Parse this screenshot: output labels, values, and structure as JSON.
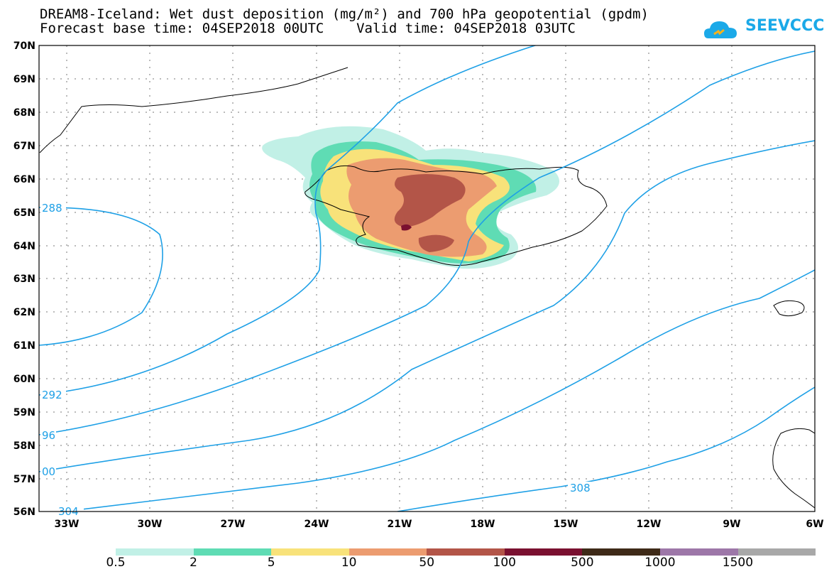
{
  "title": {
    "line1": "DREAM8-Iceland: Wet dust deposition (mg/m²) and 700 hPa geopotential (gpdm)",
    "line2": "Forecast base time: 04SEP2018 00UTC    Valid time: 04SEP2018 03UTC"
  },
  "logo": {
    "text": "SEEVCCC",
    "color": "#1ba9e8"
  },
  "map": {
    "lat_labels": [
      "70N",
      "69N",
      "68N",
      "67N",
      "66N",
      "65N",
      "64N",
      "63N",
      "62N",
      "61N",
      "60N",
      "59N",
      "58N",
      "57N",
      "56N"
    ],
    "lon_labels": [
      "33W",
      "30W",
      "27W",
      "24W",
      "21W",
      "18W",
      "15W",
      "12W",
      "9W",
      "6W"
    ],
    "contour_labels": [
      "288",
      "292",
      "96",
      "00",
      "304",
      "308"
    ],
    "contour_color": "#1ea0e6"
  },
  "legend": {
    "colors": [
      "#c1f0e6",
      "#5fdcb4",
      "#f8e27a",
      "#ec9c70",
      "#b35548",
      "#7a1030",
      "#3e2a18",
      "#9d77a8",
      "#a8a8a8"
    ],
    "labels": [
      "0.5",
      "2",
      "5",
      "10",
      "50",
      "100",
      "500",
      "1000",
      "1500"
    ]
  }
}
